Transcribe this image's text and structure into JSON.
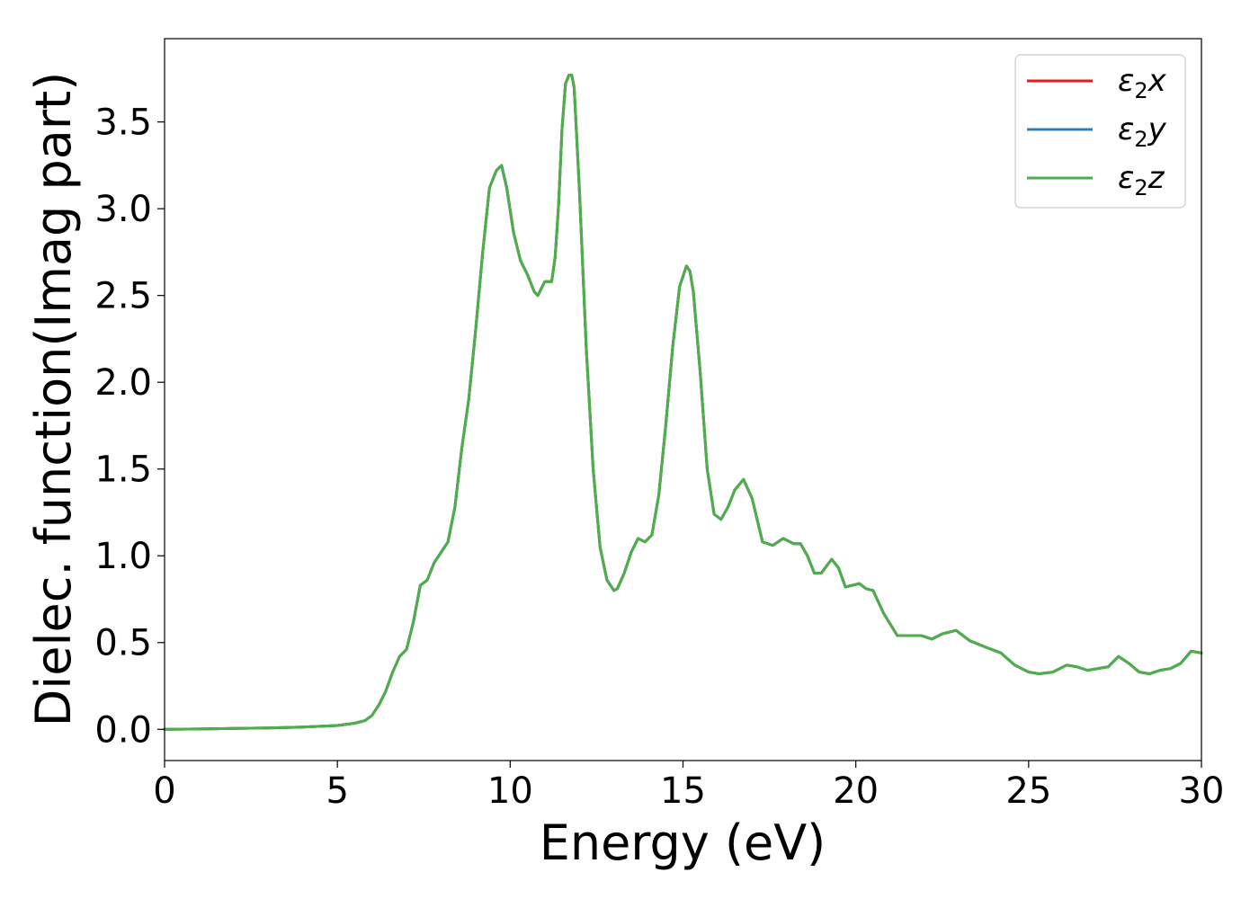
{
  "chart_data": {
    "type": "line",
    "title": "",
    "xlabel": "Energy (eV)",
    "ylabel": "Dielec. function(Imag part)",
    "xlim": [
      0,
      30
    ],
    "ylim": [
      -0.18,
      3.98
    ],
    "xticks": [
      0,
      5,
      10,
      15,
      20,
      25,
      30
    ],
    "xtick_labels": [
      "0",
      "5",
      "10",
      "15",
      "20",
      "25",
      "30"
    ],
    "yticks": [
      0.0,
      0.5,
      1.0,
      1.5,
      2.0,
      2.5,
      3.0,
      3.5
    ],
    "ytick_labels": [
      "0.0",
      "0.5",
      "1.0",
      "1.5",
      "2.0",
      "2.5",
      "3.0",
      "3.5"
    ],
    "grid": false,
    "legend_position": "top-right",
    "series": [
      {
        "name": "ε2x",
        "label_base": "ε",
        "label_sub": "2",
        "label_tail": "x",
        "color": "#e41a1c",
        "x": [
          0,
          1,
          2,
          3,
          4,
          5,
          5.5,
          5.8,
          6.0,
          6.2,
          6.4,
          6.6,
          6.8,
          7.0,
          7.2,
          7.4,
          7.6,
          7.8,
          8.0,
          8.2,
          8.4,
          8.6,
          8.8,
          9.0,
          9.2,
          9.4,
          9.6,
          9.75,
          9.9,
          10.1,
          10.3,
          10.5,
          10.7,
          10.8,
          10.9,
          11.0,
          11.1,
          11.2,
          11.3,
          11.4,
          11.5,
          11.6,
          11.7,
          11.78,
          11.85,
          12.0,
          12.2,
          12.4,
          12.6,
          12.8,
          13.0,
          13.1,
          13.3,
          13.5,
          13.7,
          13.9,
          14.1,
          14.3,
          14.5,
          14.7,
          14.9,
          15.1,
          15.2,
          15.3,
          15.5,
          15.7,
          15.9,
          16.1,
          16.3,
          16.5,
          16.75,
          17.0,
          17.3,
          17.6,
          17.9,
          18.2,
          18.4,
          18.6,
          18.8,
          19.0,
          19.3,
          19.5,
          19.7,
          19.9,
          20.1,
          20.3,
          20.5,
          20.8,
          21.2,
          21.5,
          21.9,
          22.2,
          22.5,
          22.9,
          23.3,
          23.8,
          24.2,
          24.6,
          25.0,
          25.3,
          25.7,
          26.1,
          26.4,
          26.7,
          27.0,
          27.3,
          27.6,
          27.9,
          28.2,
          28.5,
          28.8,
          29.1,
          29.4,
          29.7,
          30.0
        ],
        "y": [
          0.0,
          0.002,
          0.005,
          0.008,
          0.013,
          0.022,
          0.035,
          0.05,
          0.08,
          0.14,
          0.22,
          0.33,
          0.42,
          0.46,
          0.62,
          0.83,
          0.86,
          0.96,
          1.02,
          1.08,
          1.28,
          1.62,
          1.9,
          2.3,
          2.74,
          3.12,
          3.22,
          3.25,
          3.12,
          2.86,
          2.7,
          2.62,
          2.52,
          2.5,
          2.54,
          2.58,
          2.58,
          2.58,
          2.72,
          3.02,
          3.46,
          3.72,
          3.77,
          3.77,
          3.7,
          3.12,
          2.2,
          1.5,
          1.05,
          0.86,
          0.8,
          0.81,
          0.9,
          1.02,
          1.1,
          1.08,
          1.12,
          1.35,
          1.75,
          2.2,
          2.55,
          2.67,
          2.64,
          2.52,
          2.05,
          1.5,
          1.24,
          1.21,
          1.28,
          1.38,
          1.44,
          1.33,
          1.08,
          1.06,
          1.1,
          1.07,
          1.07,
          1.0,
          0.9,
          0.9,
          0.98,
          0.93,
          0.82,
          0.83,
          0.84,
          0.81,
          0.8,
          0.67,
          0.54,
          0.54,
          0.54,
          0.52,
          0.55,
          0.57,
          0.51,
          0.47,
          0.44,
          0.37,
          0.33,
          0.32,
          0.33,
          0.37,
          0.36,
          0.34,
          0.35,
          0.36,
          0.42,
          0.38,
          0.33,
          0.32,
          0.34,
          0.35,
          0.38,
          0.45,
          0.44
        ]
      },
      {
        "name": "ε2y",
        "label_base": "ε",
        "label_sub": "2",
        "label_tail": "y",
        "color": "#377eb8",
        "x": [
          0,
          1,
          2,
          3,
          4,
          5,
          5.5,
          5.8,
          6.0,
          6.2,
          6.4,
          6.6,
          6.8,
          7.0,
          7.2,
          7.4,
          7.6,
          7.8,
          8.0,
          8.2,
          8.4,
          8.6,
          8.8,
          9.0,
          9.2,
          9.4,
          9.6,
          9.75,
          9.9,
          10.1,
          10.3,
          10.5,
          10.7,
          10.8,
          10.9,
          11.0,
          11.1,
          11.2,
          11.3,
          11.4,
          11.5,
          11.6,
          11.7,
          11.78,
          11.85,
          12.0,
          12.2,
          12.4,
          12.6,
          12.8,
          13.0,
          13.1,
          13.3,
          13.5,
          13.7,
          13.9,
          14.1,
          14.3,
          14.5,
          14.7,
          14.9,
          15.1,
          15.2,
          15.3,
          15.5,
          15.7,
          15.9,
          16.1,
          16.3,
          16.5,
          16.75,
          17.0,
          17.3,
          17.6,
          17.9,
          18.2,
          18.4,
          18.6,
          18.8,
          19.0,
          19.3,
          19.5,
          19.7,
          19.9,
          20.1,
          20.3,
          20.5,
          20.8,
          21.2,
          21.5,
          21.9,
          22.2,
          22.5,
          22.9,
          23.3,
          23.8,
          24.2,
          24.6,
          25.0,
          25.3,
          25.7,
          26.1,
          26.4,
          26.7,
          27.0,
          27.3,
          27.6,
          27.9,
          28.2,
          28.5,
          28.8,
          29.1,
          29.4,
          29.7,
          30.0
        ],
        "y": [
          0.0,
          0.002,
          0.005,
          0.008,
          0.013,
          0.022,
          0.035,
          0.05,
          0.08,
          0.14,
          0.22,
          0.33,
          0.42,
          0.46,
          0.62,
          0.83,
          0.86,
          0.96,
          1.02,
          1.08,
          1.28,
          1.62,
          1.9,
          2.3,
          2.74,
          3.12,
          3.22,
          3.25,
          3.12,
          2.86,
          2.7,
          2.62,
          2.52,
          2.5,
          2.54,
          2.58,
          2.58,
          2.58,
          2.72,
          3.02,
          3.46,
          3.72,
          3.77,
          3.77,
          3.7,
          3.12,
          2.2,
          1.5,
          1.05,
          0.86,
          0.8,
          0.81,
          0.9,
          1.02,
          1.1,
          1.08,
          1.12,
          1.35,
          1.75,
          2.2,
          2.55,
          2.67,
          2.64,
          2.52,
          2.05,
          1.5,
          1.24,
          1.21,
          1.28,
          1.38,
          1.44,
          1.33,
          1.08,
          1.06,
          1.1,
          1.07,
          1.07,
          1.0,
          0.9,
          0.9,
          0.98,
          0.93,
          0.82,
          0.83,
          0.84,
          0.81,
          0.8,
          0.67,
          0.54,
          0.54,
          0.54,
          0.52,
          0.55,
          0.57,
          0.51,
          0.47,
          0.44,
          0.37,
          0.33,
          0.32,
          0.33,
          0.37,
          0.36,
          0.34,
          0.35,
          0.36,
          0.42,
          0.38,
          0.33,
          0.32,
          0.34,
          0.35,
          0.38,
          0.45,
          0.44
        ]
      },
      {
        "name": "ε2z",
        "label_base": "ε",
        "label_sub": "2",
        "label_tail": "z",
        "color": "#4daf4a",
        "x": [
          0,
          1,
          2,
          3,
          4,
          5,
          5.5,
          5.8,
          6.0,
          6.2,
          6.4,
          6.6,
          6.8,
          7.0,
          7.2,
          7.4,
          7.6,
          7.8,
          8.0,
          8.2,
          8.4,
          8.6,
          8.8,
          9.0,
          9.2,
          9.4,
          9.6,
          9.75,
          9.9,
          10.1,
          10.3,
          10.5,
          10.7,
          10.8,
          10.9,
          11.0,
          11.1,
          11.2,
          11.3,
          11.4,
          11.5,
          11.6,
          11.7,
          11.78,
          11.85,
          12.0,
          12.2,
          12.4,
          12.6,
          12.8,
          13.0,
          13.1,
          13.3,
          13.5,
          13.7,
          13.9,
          14.1,
          14.3,
          14.5,
          14.7,
          14.9,
          15.1,
          15.2,
          15.3,
          15.5,
          15.7,
          15.9,
          16.1,
          16.3,
          16.5,
          16.75,
          17.0,
          17.3,
          17.6,
          17.9,
          18.2,
          18.4,
          18.6,
          18.8,
          19.0,
          19.3,
          19.5,
          19.7,
          19.9,
          20.1,
          20.3,
          20.5,
          20.8,
          21.2,
          21.5,
          21.9,
          22.2,
          22.5,
          22.9,
          23.3,
          23.8,
          24.2,
          24.6,
          25.0,
          25.3,
          25.7,
          26.1,
          26.4,
          26.7,
          27.0,
          27.3,
          27.6,
          27.9,
          28.2,
          28.5,
          28.8,
          29.1,
          29.4,
          29.7,
          30.0
        ],
        "y": [
          0.0,
          0.002,
          0.005,
          0.008,
          0.013,
          0.022,
          0.035,
          0.05,
          0.08,
          0.14,
          0.22,
          0.33,
          0.42,
          0.46,
          0.62,
          0.83,
          0.86,
          0.96,
          1.02,
          1.08,
          1.28,
          1.62,
          1.9,
          2.3,
          2.74,
          3.12,
          3.22,
          3.25,
          3.12,
          2.86,
          2.7,
          2.62,
          2.52,
          2.5,
          2.54,
          2.58,
          2.58,
          2.58,
          2.72,
          3.02,
          3.46,
          3.72,
          3.77,
          3.77,
          3.7,
          3.12,
          2.2,
          1.5,
          1.05,
          0.86,
          0.8,
          0.81,
          0.9,
          1.02,
          1.1,
          1.08,
          1.12,
          1.35,
          1.75,
          2.2,
          2.55,
          2.67,
          2.64,
          2.52,
          2.05,
          1.5,
          1.24,
          1.21,
          1.28,
          1.38,
          1.44,
          1.33,
          1.08,
          1.06,
          1.1,
          1.07,
          1.07,
          1.0,
          0.9,
          0.9,
          0.98,
          0.93,
          0.82,
          0.83,
          0.84,
          0.81,
          0.8,
          0.67,
          0.54,
          0.54,
          0.54,
          0.52,
          0.55,
          0.57,
          0.51,
          0.47,
          0.44,
          0.37,
          0.33,
          0.32,
          0.33,
          0.37,
          0.36,
          0.34,
          0.35,
          0.36,
          0.42,
          0.38,
          0.33,
          0.32,
          0.34,
          0.35,
          0.38,
          0.45,
          0.44
        ]
      }
    ]
  }
}
